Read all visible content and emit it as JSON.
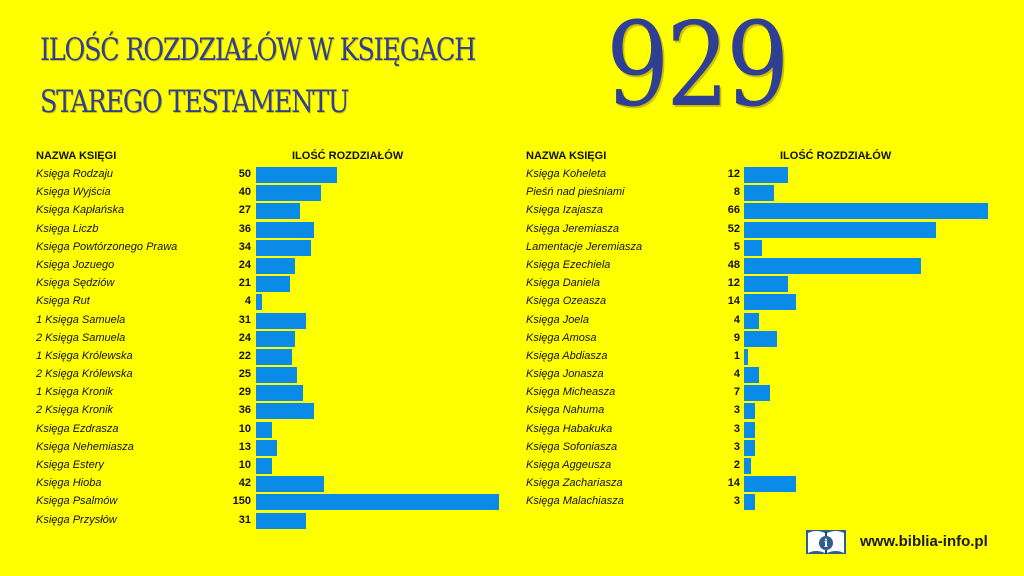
{
  "title_line1": "ILOŚĆ ROZDZIAŁÓW W KSIĘGACH",
  "title_line2": "STAREGO TESTAMENTU",
  "total": "929",
  "site": "www.biblia-info.pl",
  "logo_icon": "open-book-info-icon",
  "colors": {
    "background": "#FFFF00",
    "bar": "#0B8BE8",
    "title": "#2E3F94"
  },
  "chart_data": [
    {
      "type": "bar",
      "orientation": "horizontal",
      "category_header": "NAZWA KSIĘGI",
      "value_header": "ILOŚĆ ROZDZIAŁÓW",
      "categories": [
        "Księga Rodzaju",
        "Księga Wyjścia",
        "Księga Kapłańska",
        "Księga Liczb",
        "Księga Powtórzonego Prawa",
        "Księga Jozuego",
        "Księga Sędziów",
        "Księga Rut",
        "1 Księga Samuela",
        "2 Księga Samuela",
        "1 Księga Królewska",
        "2 Księga Królewska",
        "1 Księga Kronik",
        "2 Księga Kronik",
        "Księga Ezdrasza",
        "Księga Nehemiasza",
        "Księga Estery",
        "Księga Hioba",
        "Księga Psalmów",
        "Księga Przysłów"
      ],
      "values": [
        50,
        40,
        27,
        36,
        34,
        24,
        21,
        4,
        31,
        24,
        22,
        25,
        29,
        36,
        10,
        13,
        10,
        42,
        150,
        31
      ],
      "xlim": [
        0,
        150
      ]
    },
    {
      "type": "bar",
      "orientation": "horizontal",
      "category_header": "NAZWA KSIĘGI",
      "value_header": "ILOŚĆ ROZDZIAŁÓW",
      "categories": [
        "Księga Koheleta",
        "Pieśń nad pieśniami",
        "Księga Izajasza",
        "Księga Jeremiasza",
        "Lamentacje Jeremiasza",
        "Księga Ezechiela",
        "Księga Daniela",
        "Księga Ozeasza",
        "Księga Joela",
        "Księga Amosa",
        "Księga Abdiasza",
        "Księga Jonasza",
        "Księga Micheasza",
        "Księga Nahuma",
        "Księga Habakuka",
        "Księga Sofoniasza",
        "Księga Aggeusza",
        "Księga Zachariasza",
        "Księga Malachiasza"
      ],
      "values": [
        12,
        8,
        66,
        52,
        5,
        48,
        12,
        14,
        4,
        9,
        1,
        4,
        7,
        3,
        3,
        3,
        2,
        14,
        3
      ],
      "xlim": [
        0,
        66
      ]
    }
  ]
}
